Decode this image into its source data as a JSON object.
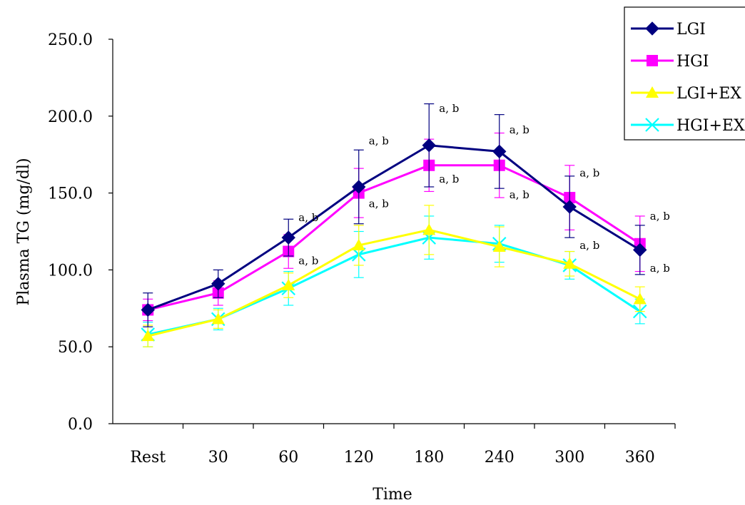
{
  "chart_data": {
    "type": "line",
    "xlabel": "Time",
    "ylabel": "Plasma TG (mg/dl)",
    "categories": [
      "Rest",
      "30",
      "60",
      "120",
      "180",
      "240",
      "300",
      "360"
    ],
    "ylim": [
      0,
      250
    ],
    "yticks": [
      "0.0",
      "50.0",
      "100.0",
      "150.0",
      "200.0",
      "250.0"
    ],
    "grid": false,
    "legend_position": "top-right",
    "series": [
      {
        "name": "LGI",
        "color": "#000080",
        "marker": "diamond",
        "values": [
          74,
          91,
          121,
          154,
          181,
          177,
          141,
          113
        ],
        "errors": [
          11,
          9,
          12,
          24,
          27,
          24,
          20,
          16
        ]
      },
      {
        "name": "HGI",
        "color": "#ff00ff",
        "marker": "square",
        "values": [
          74,
          85,
          112,
          150,
          168,
          168,
          147,
          117
        ],
        "errors": [
          7,
          8,
          11,
          16,
          17,
          21,
          21,
          18
        ]
      },
      {
        "name": "LGI+EX",
        "color": "#ffff00",
        "marker": "triangle",
        "values": [
          57,
          68,
          90,
          116,
          126,
          115,
          104,
          81
        ],
        "errors": [
          7,
          6,
          8,
          13,
          16,
          13,
          8,
          8
        ]
      },
      {
        "name": "HGI+EX",
        "color": "#00ffff",
        "marker": "x",
        "values": [
          58,
          68,
          88,
          110,
          121,
          117,
          103,
          73
        ],
        "errors": [
          8,
          7,
          11,
          15,
          14,
          12,
          9,
          8
        ]
      }
    ],
    "annotations": [
      {
        "text": "a, b",
        "category": "60",
        "value": 134
      },
      {
        "text": "a, b",
        "category": "60",
        "value": 106
      },
      {
        "text": "a, b",
        "category": "120",
        "value": 184
      },
      {
        "text": "a, b",
        "category": "120",
        "value": 143
      },
      {
        "text": "a, b",
        "category": "180",
        "value": 205
      },
      {
        "text": "a, b",
        "category": "180",
        "value": 159
      },
      {
        "text": "a, b",
        "category": "240",
        "value": 191
      },
      {
        "text": "a, b",
        "category": "240",
        "value": 149
      },
      {
        "text": "a, b",
        "category": "300",
        "value": 163
      },
      {
        "text": "a, b",
        "category": "300",
        "value": 116
      },
      {
        "text": "a, b",
        "category": "360",
        "value": 135
      },
      {
        "text": "a, b",
        "category": "360",
        "value": 101
      }
    ]
  }
}
